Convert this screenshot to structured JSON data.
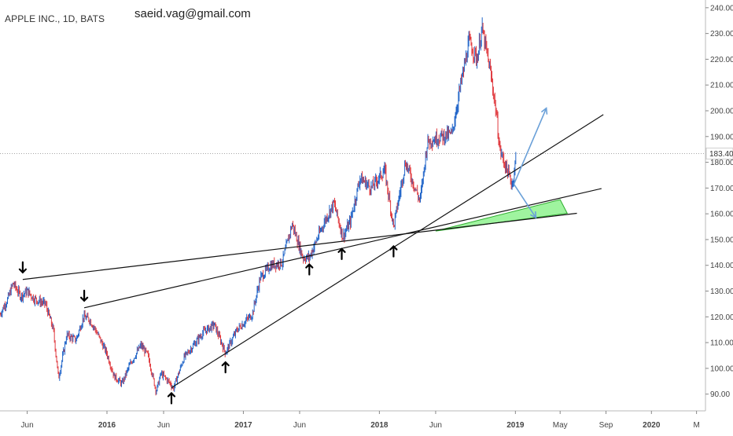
{
  "header": {
    "symbol_label": "APPLE INC., 1D, BATS",
    "watermark": "saeid.vag@gmail.com"
  },
  "colors": {
    "candle_up": "#1e63c8",
    "candle_down": "#e0393e",
    "trendline": "#111111",
    "arrow_projection": "#6aa0d8",
    "triangle_fill": "#8ef28e",
    "triangle_stroke": "#2fae2f",
    "price_tag_bg": "#ffffff",
    "axis_text": "#444444"
  },
  "chart_data": {
    "type": "candlestick",
    "title": "APPLE INC., 1D, BATS",
    "xlabel": "",
    "ylabel": "",
    "ylim": [
      83.5,
      243
    ],
    "xlim": [
      "2015-03-20",
      "2020-05-25"
    ],
    "x_ticks": [
      {
        "label": "Jun",
        "date": "2015-06-01",
        "bold": false
      },
      {
        "label": "2016",
        "date": "2016-01-01",
        "bold": true
      },
      {
        "label": "Jun",
        "date": "2016-06-01",
        "bold": false
      },
      {
        "label": "2017",
        "date": "2017-01-01",
        "bold": true
      },
      {
        "label": "Jun",
        "date": "2017-06-01",
        "bold": false
      },
      {
        "label": "2018",
        "date": "2018-01-01",
        "bold": true
      },
      {
        "label": "Jun",
        "date": "2018-06-01",
        "bold": false
      },
      {
        "label": "2019",
        "date": "2019-01-01",
        "bold": true
      },
      {
        "label": "May",
        "date": "2019-05-01",
        "bold": false
      },
      {
        "label": "Sep",
        "date": "2019-09-01",
        "bold": false
      },
      {
        "label": "2020",
        "date": "2020-01-01",
        "bold": true
      },
      {
        "label": "M",
        "date": "2020-05-01",
        "bold": false
      }
    ],
    "y_ticks": [
      90,
      100,
      110,
      120,
      130,
      140,
      150,
      160,
      170,
      180,
      190,
      200,
      210,
      220,
      230,
      240
    ],
    "y_tick_labels": [
      "90.00",
      "100.00",
      "110.00",
      "120.00",
      "130.00",
      "140.00",
      "150.00",
      "160.00",
      "170.00",
      "180.00",
      "190.00",
      "200.00",
      "210.00",
      "220.00",
      "230.00",
      "240.00"
    ],
    "current_price": {
      "value": 183.4,
      "label": "183.40"
    },
    "price_path": [
      [
        "2015-03-20",
        121
      ],
      [
        "2015-04-10",
        127
      ],
      [
        "2015-04-24",
        133
      ],
      [
        "2015-05-15",
        128
      ],
      [
        "2015-06-01",
        130
      ],
      [
        "2015-06-20",
        127
      ],
      [
        "2015-07-20",
        125
      ],
      [
        "2015-08-10",
        115
      ],
      [
        "2015-08-24",
        96
      ],
      [
        "2015-09-15",
        113
      ],
      [
        "2015-10-10",
        111
      ],
      [
        "2015-10-30",
        120
      ],
      [
        "2015-11-15",
        119
      ],
      [
        "2015-12-01",
        115
      ],
      [
        "2015-12-31",
        106
      ],
      [
        "2016-01-20",
        97
      ],
      [
        "2016-02-10",
        94
      ],
      [
        "2016-03-01",
        101
      ],
      [
        "2016-04-01",
        109
      ],
      [
        "2016-04-20",
        105
      ],
      [
        "2016-05-12",
        91
      ],
      [
        "2016-05-25",
        98
      ],
      [
        "2016-06-20",
        94
      ],
      [
        "2016-06-27",
        92
      ],
      [
        "2016-07-25",
        104
      ],
      [
        "2016-08-15",
        108
      ],
      [
        "2016-09-15",
        114
      ],
      [
        "2016-10-15",
        117
      ],
      [
        "2016-11-14",
        106
      ],
      [
        "2016-12-15",
        115
      ],
      [
        "2017-01-25",
        121
      ],
      [
        "2017-02-15",
        135
      ],
      [
        "2017-03-15",
        140
      ],
      [
        "2017-04-15",
        141
      ],
      [
        "2017-05-12",
        156
      ],
      [
        "2017-06-10",
        143
      ],
      [
        "2017-06-27",
        143
      ],
      [
        "2017-07-20",
        151
      ],
      [
        "2017-08-10",
        158
      ],
      [
        "2017-09-01",
        164
      ],
      [
        "2017-09-25",
        151
      ],
      [
        "2017-10-15",
        157
      ],
      [
        "2017-11-10",
        174
      ],
      [
        "2017-12-10",
        170
      ],
      [
        "2018-01-15",
        177
      ],
      [
        "2018-02-08",
        155
      ],
      [
        "2018-03-12",
        180
      ],
      [
        "2018-04-20",
        165
      ],
      [
        "2018-05-10",
        188
      ],
      [
        "2018-06-15",
        190
      ],
      [
        "2018-07-15",
        191
      ],
      [
        "2018-08-03",
        207
      ],
      [
        "2018-08-30",
        227
      ],
      [
        "2018-09-20",
        220
      ],
      [
        "2018-10-03",
        232
      ],
      [
        "2018-10-25",
        216
      ],
      [
        "2018-11-10",
        200
      ],
      [
        "2018-11-20",
        185
      ],
      [
        "2018-12-24",
        171
      ],
      [
        "2019-01-03",
        183
      ]
    ],
    "trendlines": [
      {
        "from": [
          "2015-05-20",
          134.5
        ],
        "to": [
          "2019-06-15",
          160.2
        ]
      },
      {
        "from": [
          "2015-11-01",
          123.5
        ],
        "to": [
          "2019-08-20",
          169.8
        ]
      },
      {
        "from": [
          "2016-06-22",
          92.5
        ],
        "to": [
          "2019-08-25",
          198.5
        ]
      }
    ],
    "projection_arrows": [
      {
        "from": [
          "2018-12-28",
          171.5
        ],
        "to": [
          "2019-03-25",
          201
        ]
      },
      {
        "from": [
          "2018-12-28",
          171.5
        ],
        "to": [
          "2019-02-25",
          158.5
        ]
      }
    ],
    "highlight_triangle": [
      [
        "2018-06-01",
        153.3
      ],
      [
        "2019-05-01",
        165.5
      ],
      [
        "2019-05-20",
        160.2
      ]
    ],
    "pivot_markers": [
      {
        "date": "2015-05-20",
        "price": 134.5,
        "direction": "down"
      },
      {
        "date": "2015-11-01",
        "price": 123.5,
        "direction": "down"
      },
      {
        "date": "2016-06-22",
        "price": 92.5,
        "direction": "up"
      },
      {
        "date": "2016-11-14",
        "price": 104.5,
        "direction": "up"
      },
      {
        "date": "2017-06-27",
        "price": 142.5,
        "direction": "up"
      },
      {
        "date": "2017-09-22",
        "price": 148.5,
        "direction": "up"
      },
      {
        "date": "2018-02-08",
        "price": 149.5,
        "direction": "up"
      }
    ]
  }
}
